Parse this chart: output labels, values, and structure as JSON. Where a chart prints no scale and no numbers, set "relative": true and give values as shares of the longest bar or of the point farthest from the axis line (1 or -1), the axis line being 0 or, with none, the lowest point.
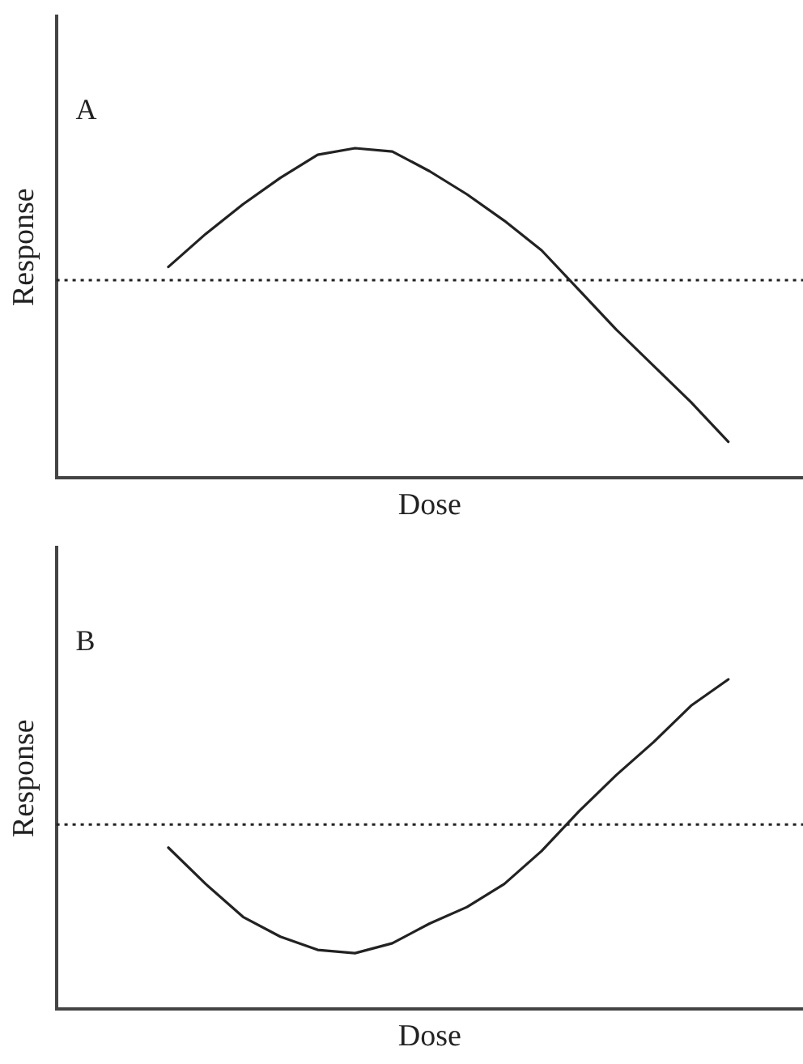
{
  "chart_data": [
    {
      "type": "line",
      "xlabel": "Dose",
      "ylabel": "Response",
      "annotations": [
        "A"
      ],
      "relative": true,
      "legend": false,
      "marker": "none",
      "line_style": "solid",
      "categories": [
        null,
        null,
        null,
        null,
        null,
        null,
        null,
        null,
        null,
        null,
        null,
        null,
        null,
        null,
        null,
        null,
        null,
        null,
        null,
        null,
        null
      ],
      "series": [
        {
          "color": "#222222",
          "values": [
            null,
            null,
            null,
            0.64,
            0.74,
            0.83,
            0.91,
            0.98,
            1,
            0.99,
            0.93,
            0.86,
            0.78,
            0.69,
            0.57,
            0.45,
            0.34,
            0.23,
            0.11,
            null,
            null
          ]
        }
      ],
      "ref_lines": [
        {
          "axis": "y",
          "value": 0.6,
          "line_style": "dotted",
          "color": "#222222"
        }
      ]
    },
    {
      "type": "line",
      "xlabel": "Dose",
      "ylabel": "Response",
      "annotations": [
        "B"
      ],
      "relative": true,
      "legend": false,
      "marker": "none",
      "line_style": "solid",
      "categories": [
        null,
        null,
        null,
        null,
        null,
        null,
        null,
        null,
        null,
        null,
        null,
        null,
        null,
        null,
        null,
        null,
        null,
        null,
        null,
        null,
        null
      ],
      "series": [
        {
          "color": "#222222",
          "values": [
            null,
            null,
            null,
            0.49,
            0.38,
            0.28,
            0.22,
            0.18,
            0.17,
            0.2,
            0.26,
            0.31,
            0.38,
            0.48,
            0.6,
            0.71,
            0.81,
            0.92,
            1,
            null,
            null
          ]
        }
      ],
      "ref_lines": [
        {
          "axis": "y",
          "value": 0.56,
          "line_style": "dotted",
          "color": "#222222"
        }
      ]
    }
  ]
}
